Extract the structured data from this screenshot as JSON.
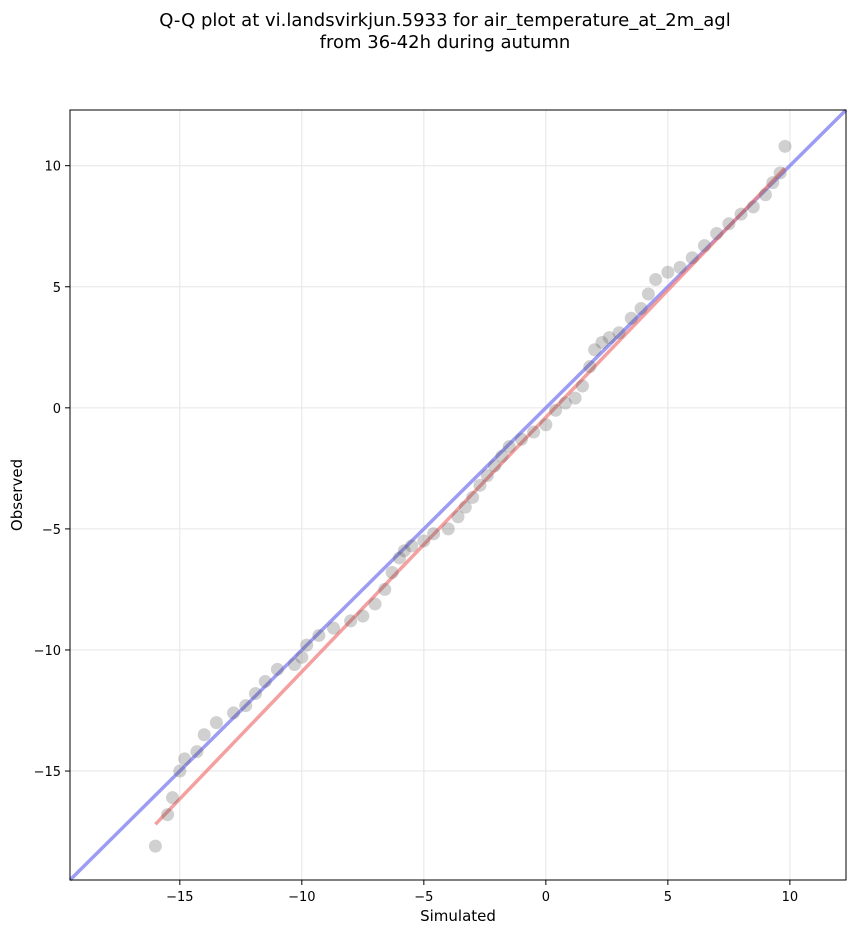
{
  "chart_data": {
    "type": "scatter",
    "title_line1": "Q-Q plot at vi.landsvirkjun.5933 for air_temperature_at_2m_agl",
    "title_line2": "from 36-42h during autumn",
    "xlabel": "Simulated",
    "ylabel": "Observed",
    "xlim": [
      -19.5,
      12.3
    ],
    "ylim": [
      -19.5,
      12.3
    ],
    "xticks": [
      -15,
      -10,
      -5,
      0,
      5,
      10
    ],
    "yticks": [
      -15,
      -10,
      -5,
      0,
      5,
      10
    ],
    "xtick_labels": [
      "−15",
      "−10",
      "−5",
      "0",
      "5",
      "10"
    ],
    "ytick_labels": [
      "−15",
      "−10",
      "−5",
      "0",
      "5",
      "10"
    ],
    "grid": true,
    "colors": {
      "points": "#555555",
      "fit_line": "#f08080",
      "identity_line": "#7b7bf0"
    },
    "fit_line": {
      "x": [
        -16.0,
        9.8
      ],
      "y": [
        -17.2,
        9.9
      ]
    },
    "identity_line": {
      "x": [
        -19.5,
        12.3
      ],
      "y": [
        -19.5,
        12.3
      ]
    },
    "quantiles": {
      "x": [
        -16.0,
        -15.5,
        -15.3,
        -15.0,
        -14.8,
        -14.3,
        -14.0,
        -13.5,
        -12.8,
        -12.3,
        -11.9,
        -11.5,
        -11.0,
        -10.3,
        -10.0,
        -9.8,
        -9.3,
        -8.7,
        -8.0,
        -7.5,
        -7.0,
        -6.6,
        -6.3,
        -6.0,
        -5.8,
        -5.5,
        -5.0,
        -4.6,
        -4.0,
        -3.6,
        -3.3,
        -3.0,
        -2.7,
        -2.4,
        -2.1,
        -1.8,
        -1.5,
        -1.0,
        -0.5,
        0.0,
        0.4,
        0.8,
        1.2,
        1.5,
        1.8,
        2.0,
        2.3,
        2.6,
        3.0,
        3.5,
        3.9,
        4.2,
        4.5,
        5.0,
        5.5,
        6.0,
        6.5,
        7.0,
        7.5,
        8.0,
        8.5,
        9.0,
        9.3,
        9.6,
        9.8
      ],
      "y": [
        -18.1,
        -16.8,
        -16.1,
        -15.0,
        -14.5,
        -14.2,
        -13.5,
        -13.0,
        -12.6,
        -12.3,
        -11.8,
        -11.3,
        -10.8,
        -10.6,
        -10.3,
        -9.8,
        -9.4,
        -9.1,
        -8.8,
        -8.6,
        -8.1,
        -7.5,
        -6.8,
        -6.2,
        -5.9,
        -5.7,
        -5.5,
        -5.2,
        -5.0,
        -4.5,
        -4.1,
        -3.7,
        -3.2,
        -2.8,
        -2.4,
        -2.0,
        -1.6,
        -1.3,
        -1.0,
        -0.7,
        -0.1,
        0.2,
        0.4,
        0.9,
        1.7,
        2.4,
        2.7,
        2.9,
        3.1,
        3.7,
        4.1,
        4.7,
        5.3,
        5.6,
        5.8,
        6.2,
        6.7,
        7.2,
        7.6,
        8.0,
        8.3,
        8.8,
        9.3,
        9.7,
        10.8
      ]
    }
  }
}
